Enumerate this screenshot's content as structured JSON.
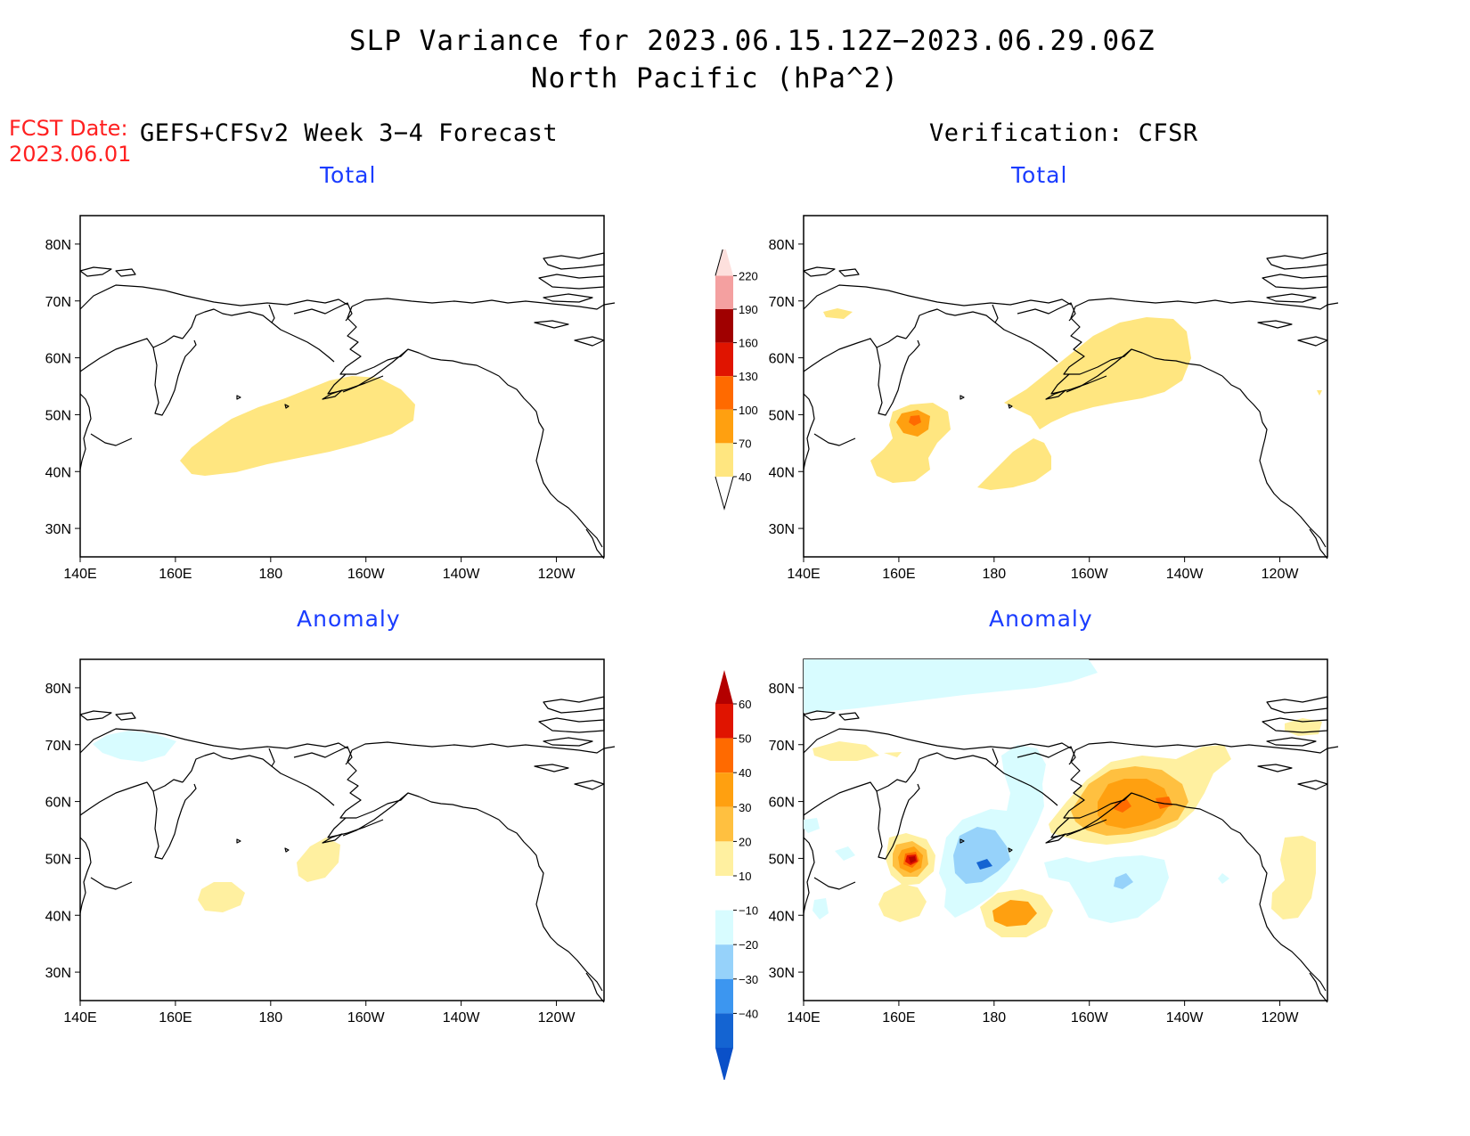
{
  "title": {
    "line1": "SLP Variance for 2023.06.15.12Z−2023.06.29.06Z",
    "line2": "North Pacific (hPa^2)"
  },
  "fcst": {
    "label": "FCST Date:",
    "date": "2023.06.01"
  },
  "forecast_header": "GEFS+CFSv2 Week 3−4 Forecast",
  "verification_header": "Verification: CFSR",
  "panels": [
    {
      "id": "fcst-total",
      "subtitle": "Total"
    },
    {
      "id": "verif-total",
      "subtitle": "Total"
    },
    {
      "id": "fcst-anomaly",
      "subtitle": "Anomaly"
    },
    {
      "id": "verif-anomaly",
      "subtitle": "Anomaly"
    }
  ],
  "axes": {
    "lat_labels": [
      "80N",
      "70N",
      "60N",
      "50N",
      "40N",
      "30N"
    ],
    "lat_values": [
      80,
      70,
      60,
      50,
      40,
      30
    ],
    "lon_labels": [
      "140E",
      "160E",
      "180",
      "160W",
      "140W",
      "120W"
    ],
    "lon_values": [
      140,
      160,
      180,
      200,
      220,
      240
    ],
    "lat_range": [
      25,
      85
    ],
    "lon_range": [
      140,
      250
    ]
  },
  "colorbars": {
    "total": {
      "labels": [
        "220",
        "190",
        "160",
        "130",
        "100",
        "70",
        "40"
      ],
      "colors": [
        "#fde0dd",
        "#f4a0a0",
        "#a00000",
        "#e01400",
        "#ff6a00",
        "#ffa010",
        "#ffe680"
      ]
    },
    "anomaly": {
      "labels": [
        "60",
        "50",
        "40",
        "30",
        "20",
        "10",
        "−10",
        "−20",
        "−30",
        "−40"
      ],
      "colors": [
        "#b40000",
        "#e01400",
        "#ff6a00",
        "#ffa010",
        "#ffc040",
        "#fff0a0",
        "#ffffff",
        "#d8fcff",
        "#96d2fa",
        "#3c96f0",
        "#1464d2",
        "#0a50c8"
      ]
    }
  }
}
